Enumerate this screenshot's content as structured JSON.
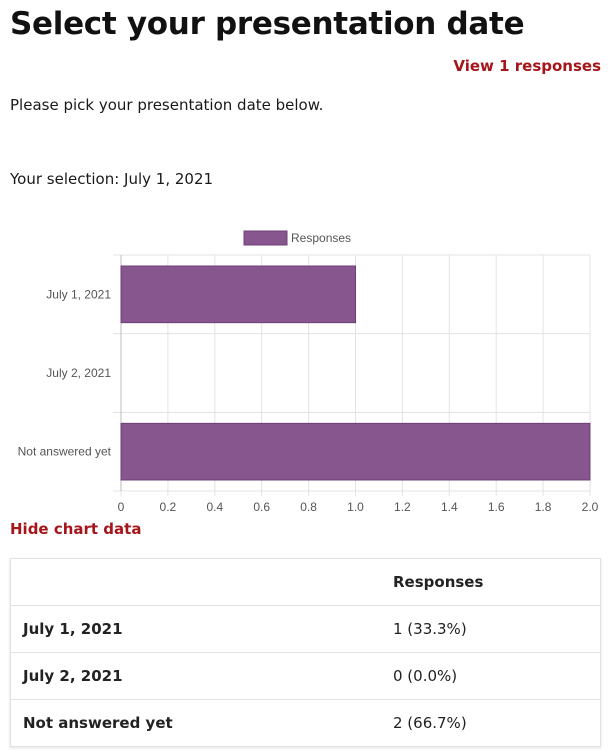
{
  "page": {
    "title": "Select your presentation date",
    "view_responses_label": "View 1 responses",
    "intro": "Please pick your presentation date below.",
    "selection": "Your selection: July 1, 2021",
    "hide_chart_label": "Hide chart data"
  },
  "colors": {
    "accent_link": "#a5151a",
    "bar": "#88568f"
  },
  "chart_data": {
    "type": "bar",
    "orientation": "horizontal",
    "categories": [
      "July 1, 2021",
      "July 2, 2021",
      "Not answered yet"
    ],
    "series": [
      {
        "name": "Responses",
        "values": [
          1,
          0,
          2
        ]
      }
    ],
    "xlim": [
      0,
      2.0
    ],
    "x_ticks": [
      "0",
      "0.2",
      "0.4",
      "0.6",
      "0.8",
      "1.0",
      "1.2",
      "1.4",
      "1.6",
      "1.8",
      "2.0"
    ],
    "grid": true,
    "legend_position": "top"
  },
  "table": {
    "headers": [
      "",
      "Responses"
    ],
    "rows": [
      {
        "label": "July 1, 2021",
        "value": "1 (33.3%)"
      },
      {
        "label": "July 2, 2021",
        "value": "0 (0.0%)"
      },
      {
        "label": "Not answered yet",
        "value": "2 (66.7%)"
      }
    ]
  }
}
